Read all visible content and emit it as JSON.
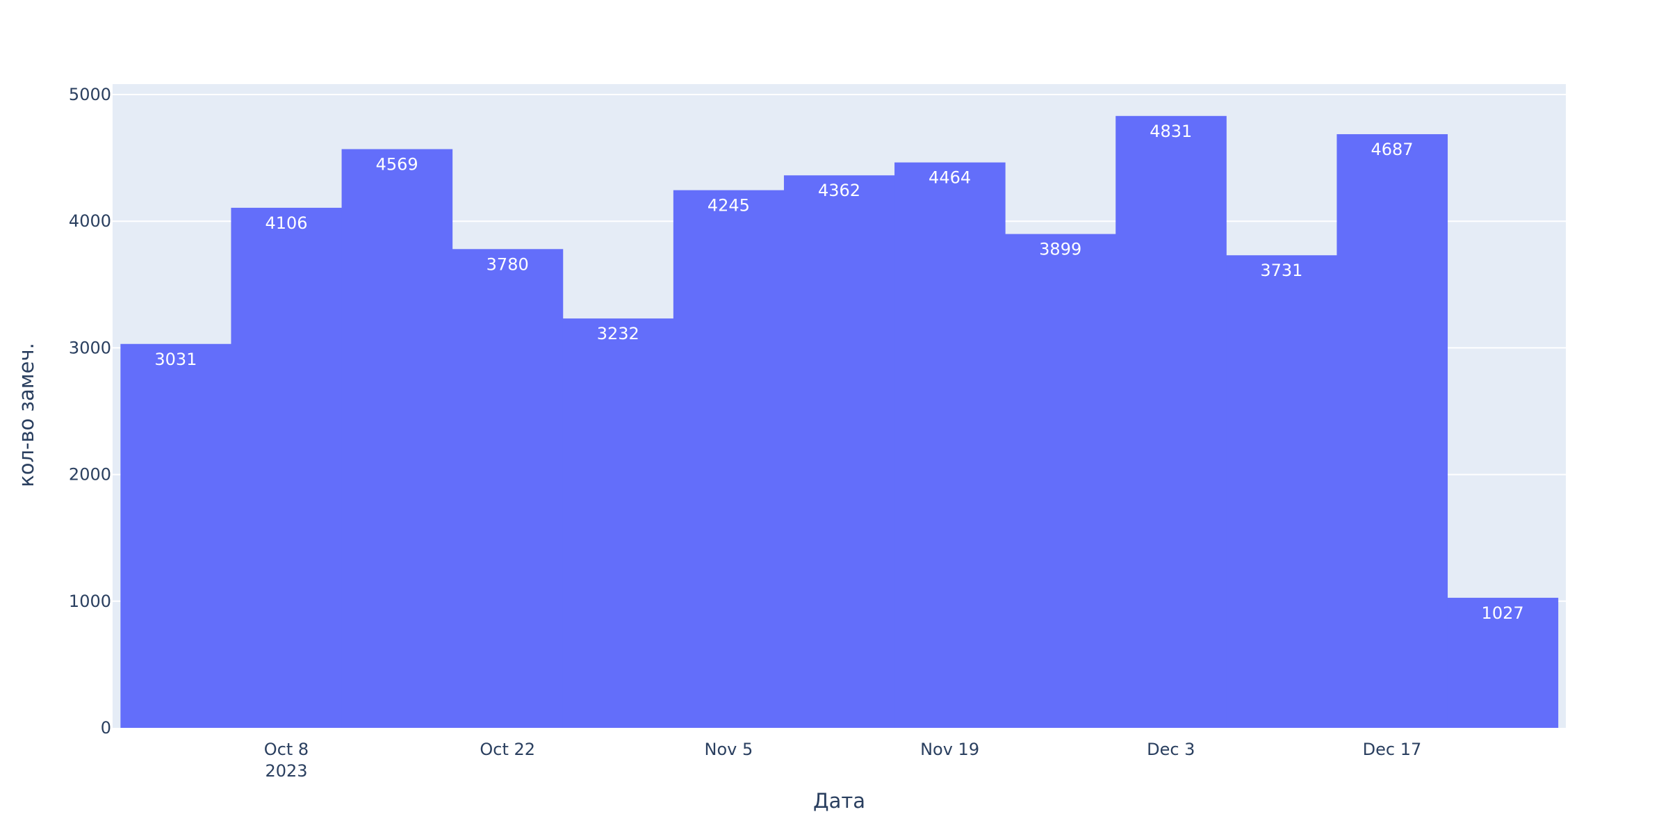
{
  "chart_data": {
    "type": "bar",
    "title": "",
    "xlabel": "Дата",
    "ylabel": "кол-во замеч.",
    "ylim": [
      0,
      5000
    ],
    "y_ticks": [
      "0",
      "1000",
      "2000",
      "3000",
      "4000",
      "5000"
    ],
    "x_tick_labels": [
      {
        "date": "2023-10-08",
        "line1": "Oct 8",
        "line2": "2023"
      },
      {
        "date": "2023-10-22",
        "line1": "Oct 22",
        "line2": ""
      },
      {
        "date": "2023-11-05",
        "line1": "Nov 5",
        "line2": ""
      },
      {
        "date": "2023-11-19",
        "line1": "Nov 19",
        "line2": ""
      },
      {
        "date": "2023-12-03",
        "line1": "Dec 3",
        "line2": ""
      },
      {
        "date": "2023-12-17",
        "line1": "Dec 17",
        "line2": ""
      }
    ],
    "x_range": [
      "2023-09-27",
      "2023-12-28"
    ],
    "bars": [
      {
        "x": "2023-10-01",
        "value": 3031,
        "label": "3031"
      },
      {
        "x": "2023-10-08",
        "value": 4106,
        "label": "4106"
      },
      {
        "x": "2023-10-15",
        "value": 4569,
        "label": "4569"
      },
      {
        "x": "2023-10-22",
        "value": 3780,
        "label": "3780"
      },
      {
        "x": "2023-10-29",
        "value": 3232,
        "label": "3232"
      },
      {
        "x": "2023-11-05",
        "value": 4245,
        "label": "4245"
      },
      {
        "x": "2023-11-12",
        "value": 4362,
        "label": "4362"
      },
      {
        "x": "2023-11-19",
        "value": 4464,
        "label": "4464"
      },
      {
        "x": "2023-11-26",
        "value": 3899,
        "label": "3899"
      },
      {
        "x": "2023-12-03",
        "value": 4831,
        "label": "4831"
      },
      {
        "x": "2023-12-10",
        "value": 3731,
        "label": "3731"
      },
      {
        "x": "2023-12-17",
        "value": 4687,
        "label": "4687"
      },
      {
        "x": "2023-12-24",
        "value": 1027,
        "label": "1027"
      }
    ],
    "grid": true,
    "legend": "none",
    "colors": {
      "bar": "#636efa",
      "plot_background": "#e5ecf6",
      "grid": "#ffffff",
      "text": "#2a3f5f",
      "bar_label": "#ffffff"
    }
  }
}
